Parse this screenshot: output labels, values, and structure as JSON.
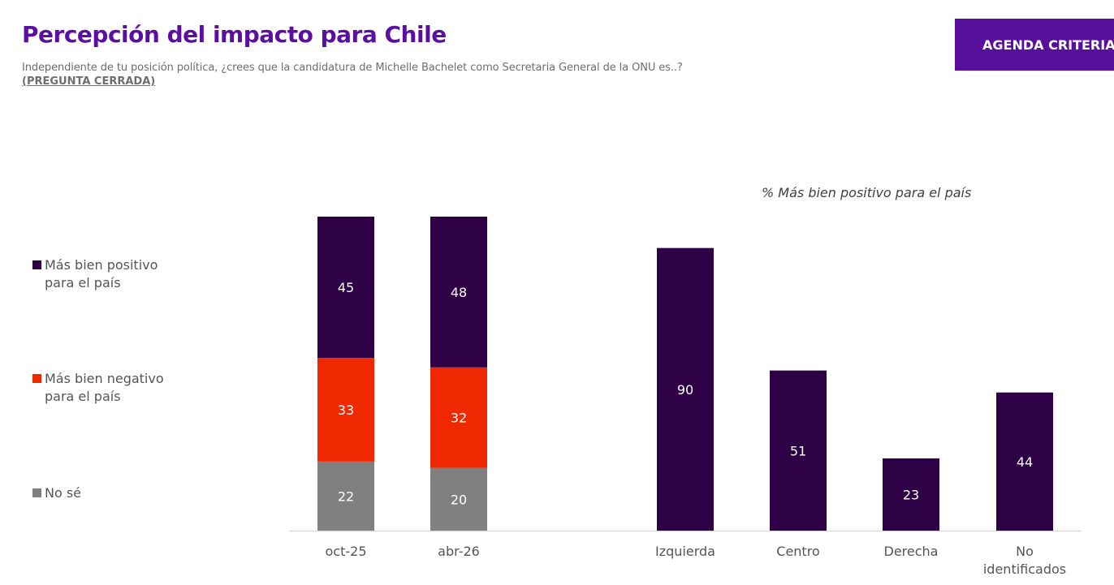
{
  "header": {
    "title": "Percepción del impacto para Chile",
    "subtitle": "Independiente de tu posición política, ¿crees que la candidatura de Michelle Bachelet como Secretaria General de la ONU es..?",
    "note": "(PREGUNTA CERRADA)",
    "brand": "AGENDA CRITERIA"
  },
  "colors": {
    "positive": "#2e0046",
    "negative": "#f02800",
    "unknown": "#808080",
    "title": "#5a0fa0",
    "brand_bg": "#56109b",
    "axis": "#d9d9d9"
  },
  "legend": [
    {
      "label": "Más bien positivo para el país",
      "color_key": "positive"
    },
    {
      "label": "Más bien negativo para el país",
      "color_key": "negative"
    },
    {
      "label": "No sé",
      "color_key": "unknown"
    }
  ],
  "chart_data": [
    {
      "type": "bar",
      "stacked": true,
      "title": "",
      "xlabel": "",
      "ylabel": "",
      "categories": [
        "oct-25",
        "abr-26"
      ],
      "series": [
        {
          "name": "No sé",
          "color_key": "unknown",
          "values": [
            22,
            20
          ]
        },
        {
          "name": "Más bien negativo para el país",
          "color_key": "negative",
          "values": [
            33,
            32
          ]
        },
        {
          "name": "Más bien positivo para el país",
          "color_key": "positive",
          "values": [
            45,
            48
          ]
        }
      ],
      "ylim": [
        0,
        100
      ],
      "grid": false,
      "legend": "left"
    },
    {
      "type": "bar",
      "title": "% Más bien positivo para el país",
      "xlabel": "",
      "ylabel": "",
      "categories": [
        "Izquierda",
        "Centro",
        "Derecha",
        "No identificados"
      ],
      "values": [
        90,
        51,
        23,
        44
      ],
      "color_key": "positive",
      "ylim": [
        0,
        100
      ],
      "grid": false
    }
  ]
}
